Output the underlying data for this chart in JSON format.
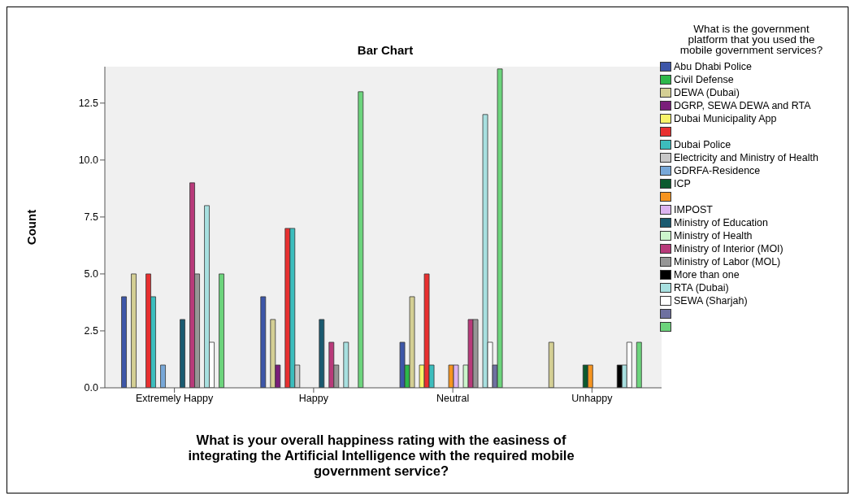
{
  "chart_data": {
    "type": "bar",
    "title": "Bar Chart",
    "xlabel": "What is your overall happiness rating with the easiness of integrating the Artificial Intelligence with the required mobile government service?",
    "ylabel": "Count",
    "legend_title": "What is the government platform that you used the mobile government services?",
    "legend": "right",
    "categories": [
      "Extremely Happy",
      "Happy",
      "Neutral",
      "Unhappy"
    ],
    "ylim": [
      0,
      14.1
    ],
    "yticks": [
      {
        "value": 0,
        "label": "0.0"
      },
      {
        "value": 2.5,
        "label": "2.5"
      },
      {
        "value": 5,
        "label": "5.0"
      },
      {
        "value": 7.5,
        "label": "7.5"
      },
      {
        "value": 10,
        "label": "10.0"
      },
      {
        "value": 12.5,
        "label": "12.5"
      }
    ],
    "series": [
      {
        "name": "Abu Dhabi Police",
        "color": "#3d56a8",
        "values": [
          4,
          4,
          2,
          0
        ]
      },
      {
        "name": "Civil Defense",
        "color": "#2db84a",
        "values": [
          0,
          0,
          1,
          0
        ]
      },
      {
        "name": "DEWA (Dubai)",
        "color": "#d4cf94",
        "values": [
          5,
          3,
          4,
          2
        ]
      },
      {
        "name": "DGRP, SEWA DEWA and RTA",
        "color": "#7a1f7a",
        "values": [
          0,
          1,
          0,
          0
        ]
      },
      {
        "name": "Dubai Municipality App",
        "color": "#f8f46a",
        "values": [
          0,
          0,
          1,
          0
        ]
      },
      {
        "color": "#e83030",
        "values": [
          5,
          7,
          5,
          0
        ]
      },
      {
        "name": "Dubai Police",
        "color": "#3cbdbd",
        "values": [
          4,
          7,
          1,
          0
        ]
      },
      {
        "name": "Electricity and Ministry of Health",
        "color": "#c8c8c8",
        "values": [
          0,
          1,
          0,
          0
        ]
      },
      {
        "name": "GDRFA-Residence",
        "color": "#78a8d8",
        "values": [
          1,
          0,
          0,
          0
        ]
      },
      {
        "name": "ICP",
        "color": "#0c5a2e",
        "values": [
          0,
          0,
          0,
          1
        ]
      },
      {
        "color": "#f59420",
        "values": [
          0,
          0,
          1,
          1
        ]
      },
      {
        "name": "IMPOST",
        "color": "#dcb4f0",
        "values": [
          0,
          0,
          1,
          0
        ]
      },
      {
        "name": "Ministry of Education",
        "color": "#1a5a70",
        "values": [
          3,
          3,
          0,
          0
        ]
      },
      {
        "name": "Ministry of Health",
        "color": "#ccf5cc",
        "values": [
          0,
          0,
          1,
          0
        ]
      },
      {
        "name": "Ministry of Interior (MOI)",
        "color": "#b83a7a",
        "values": [
          9,
          2,
          3,
          0
        ]
      },
      {
        "name": "Ministry of Labor (MOL)",
        "color": "#969696",
        "values": [
          5,
          1,
          3,
          0
        ]
      },
      {
        "name": "More than one",
        "color": "#000000",
        "values": [
          0,
          0,
          0,
          1
        ]
      },
      {
        "name": "RTA (Dubai)",
        "color": "#a8e0e0",
        "values": [
          8,
          2,
          12,
          1
        ]
      },
      {
        "name": "SEWA (Sharjah)",
        "color": "#ffffff",
        "values": [
          2,
          0,
          2,
          2
        ]
      },
      {
        "color": "#6e70a0",
        "values": [
          0,
          0,
          1,
          0
        ]
      },
      {
        "color": "#6cd47c",
        "values": [
          5,
          13,
          14,
          2
        ]
      }
    ]
  }
}
